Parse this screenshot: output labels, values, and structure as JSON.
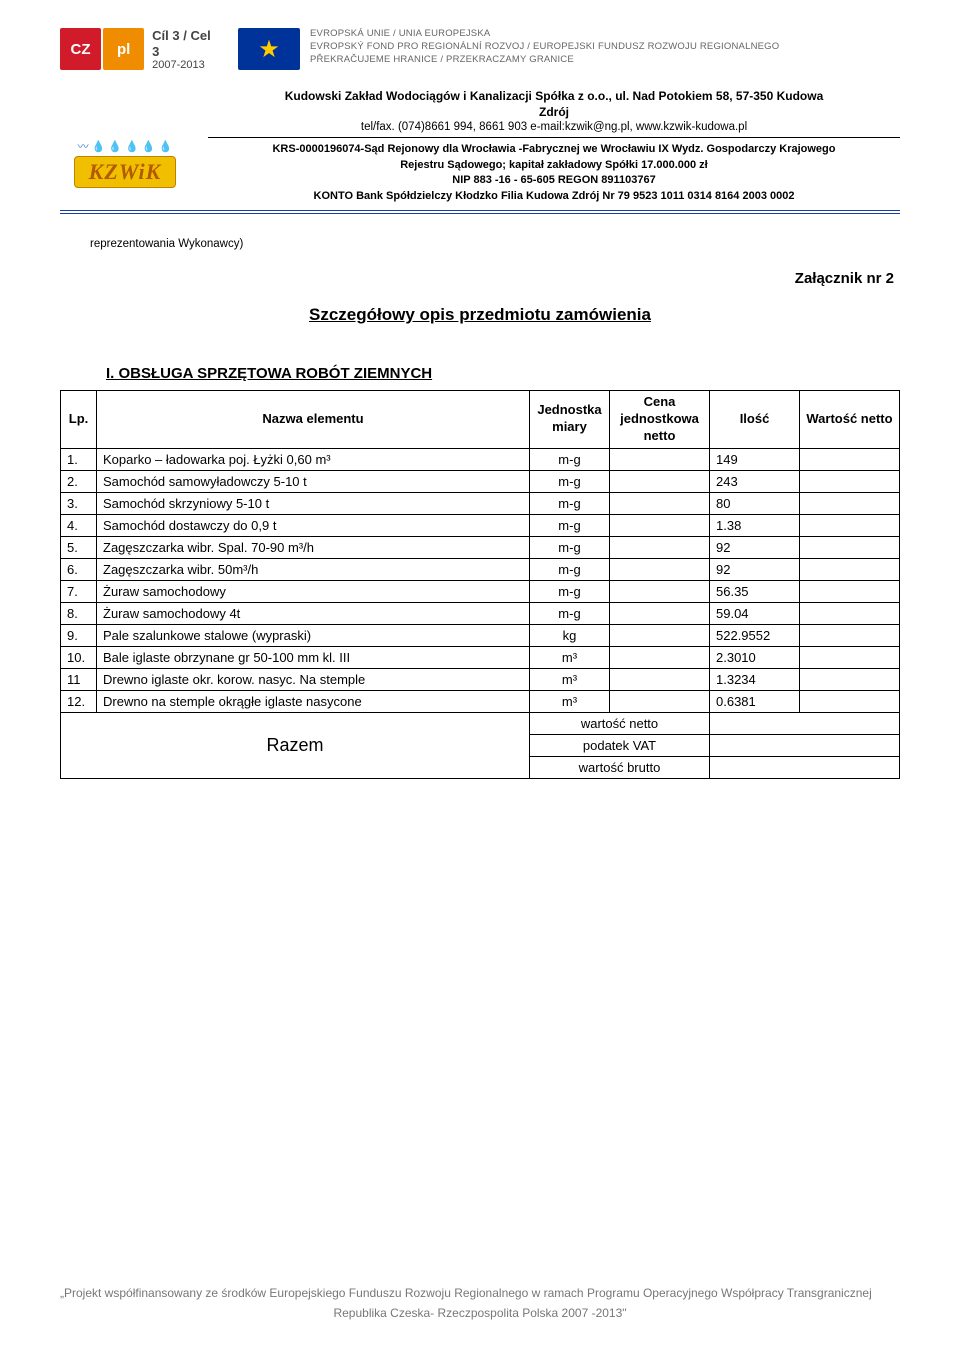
{
  "logos": {
    "cz": "CZ",
    "pl": "pl",
    "cil3_l1": "Cíl 3 / Cel 3",
    "cil3_l2": "2007-2013",
    "eu_star": "★",
    "eu_line1": "EVROPSKÁ UNIE / UNIA EUROPEJSKA",
    "eu_line2": "EVROPSKÝ FOND PRO REGIONÁLNÍ ROZVOJ / EUROPEJSKI FUNDUSZ ROZWOJU REGIONALNEGO",
    "eu_line3": "PŘEKRAČUJEME HRANICE / PRZEKRACZAMY GRANICE",
    "kzwik_drops": "〰 💧 💧\n💧 💧 💧",
    "kzwik_band": "KZWiK"
  },
  "company": {
    "title_l1": "Kudowski Zakład Wodociągów i Kanalizacji Spółka z o.o.,   ul. Nad Potokiem 58,   57-350 Kudowa",
    "title_l2": "Zdrój",
    "contact": "tel/fax. (074)8661 994,  8661 903   e-mail:kzwik@ng.pl, www.kzwik-kudowa.pl",
    "legal_l1": "KRS-0000196074-Sąd Rejonowy dla Wrocławia -Fabrycznej we Wrocławiu IX Wydz. Gospodarczy Krajowego",
    "legal_l2": "Rejestru Sądowego;  kapitał zakładowy Spółki 17.000.000 zł",
    "legal_l3": "NIP 883 -16 - 65-605  REGON 891103767",
    "legal_l4": "KONTO Bank Spółdzielczy Kłodzko Filia Kudowa Zdrój  Nr 79 9523 1011 0314 8164 2003 0002"
  },
  "body": {
    "rep": "reprezentowania Wykonawcy)",
    "attachment": "Załącznik nr 2",
    "main_title": "Szczegółowy opis przedmiotu zamówienia",
    "section_title": "I.    OBSŁUGA SPRZĘTOWA ROBÓT ZIEMNYCH"
  },
  "table": {
    "headers": {
      "lp": "Lp.",
      "name": "Nazwa elementu",
      "unit": "Jednostka miary",
      "price": "Cena jednostkowa netto",
      "qty": "Ilość",
      "value": "Wartość netto"
    },
    "rows": [
      {
        "lp": "1.",
        "name": "Koparko – ładowarka poj. Łyżki 0,60 m³",
        "unit": "m-g",
        "qty": "149"
      },
      {
        "lp": "2.",
        "name": "Samochód samowyładowczy 5-10 t",
        "unit": "m-g",
        "qty": "243"
      },
      {
        "lp": "3.",
        "name": "Samochód skrzyniowy 5-10 t",
        "unit": "m-g",
        "qty": "80"
      },
      {
        "lp": "4.",
        "name": "Samochód dostawczy do 0,9 t",
        "unit": "m-g",
        "qty": "1.38"
      },
      {
        "lp": "5.",
        "name": "Zagęszczarka wibr. Spal. 70-90 m³/h",
        "unit": "m-g",
        "qty": "92"
      },
      {
        "lp": "6.",
        "name": "Zagęszczarka wibr. 50m³/h",
        "unit": "m-g",
        "qty": "92"
      },
      {
        "lp": "7.",
        "name": "Żuraw samochodowy",
        "unit": "m-g",
        "qty": "56.35"
      },
      {
        "lp": "8.",
        "name": "Żuraw samochodowy 4t",
        "unit": "m-g",
        "qty": "59.04"
      },
      {
        "lp": "9.",
        "name": "Pale szalunkowe stalowe (wypraski)",
        "unit": "kg",
        "qty": "522.9552"
      },
      {
        "lp": "10.",
        "name": "Bale iglaste obrzynane gr 50-100 mm kl. III",
        "unit": "m³",
        "qty": "2.3010"
      },
      {
        "lp": "11",
        "name": "Drewno iglaste okr. korow. nasyc. Na stemple",
        "unit": "m³",
        "qty": "1.3234"
      },
      {
        "lp": "12.",
        "name": "Drewno na stemple okrągłe iglaste nasycone",
        "unit": "m³",
        "qty": "0.6381"
      }
    ],
    "summary": {
      "razem": "Razem",
      "netto": "wartość netto",
      "vat": "podatek VAT",
      "brutto": "wartość brutto"
    }
  },
  "footer": {
    "line1": "„Projekt współfinansowany ze środków Europejskiego Funduszu Rozwoju Regionalnego w ramach Programu Operacyjnego Współpracy Transgranicznej",
    "line2": "Republika Czeska- Rzeczpospolita Polska 2007 -2013\""
  }
}
